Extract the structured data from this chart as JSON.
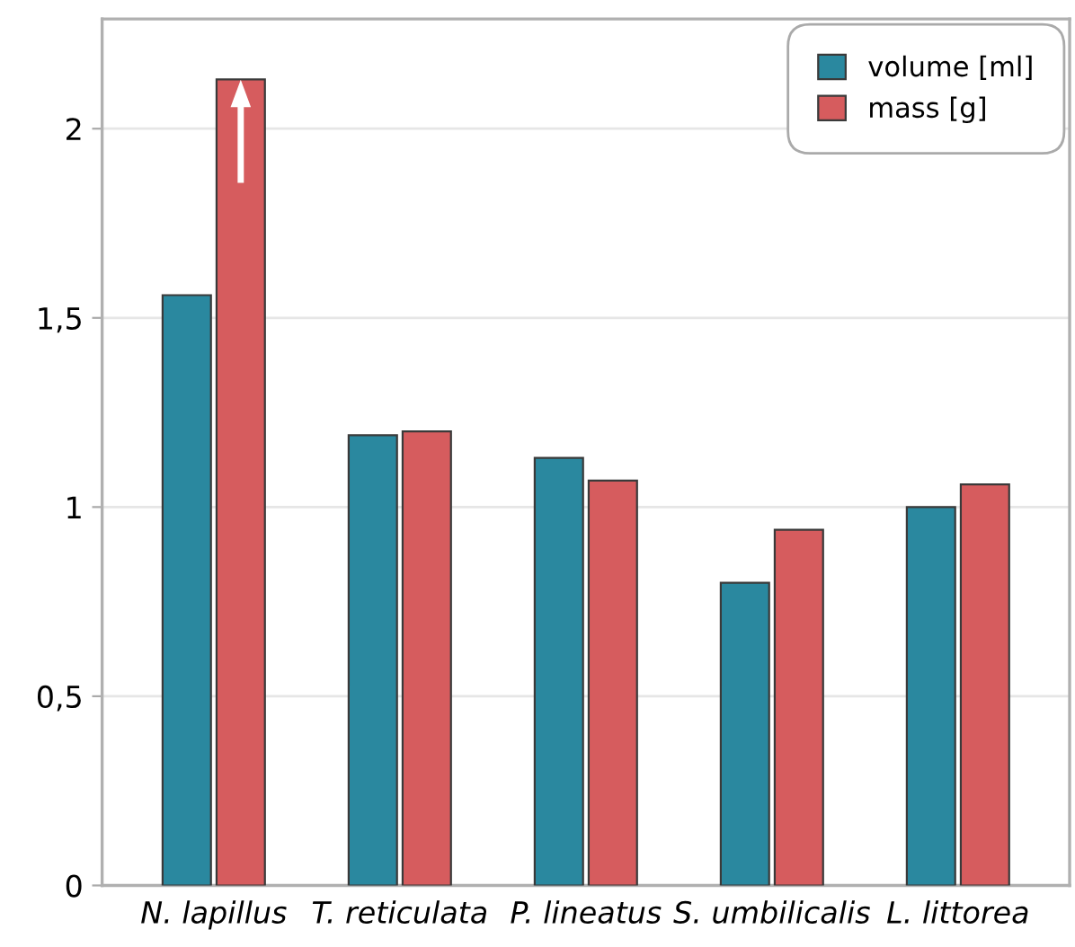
{
  "chart_data": {
    "type": "bar",
    "categories": [
      "N. lapillus",
      "T. reticulata",
      "P. lineatus",
      "S. umbilicalis",
      "L. littorea"
    ],
    "series": [
      {
        "name": "volume [ml]",
        "color": "#2a889f",
        "values": [
          1.56,
          1.19,
          1.13,
          0.8,
          1.0
        ]
      },
      {
        "name": "mass [g]",
        "color": "#d65c5e",
        "values": [
          2.13,
          1.2,
          1.07,
          0.94,
          1.06
        ]
      }
    ],
    "ylim": [
      0,
      2.29
    ],
    "yticks": [
      0,
      {
        "value": 0.5,
        "label": "0,5"
      },
      1,
      {
        "value": 1.5,
        "label": "1,5"
      },
      2
    ],
    "grid": "y",
    "legend": "top right"
  }
}
